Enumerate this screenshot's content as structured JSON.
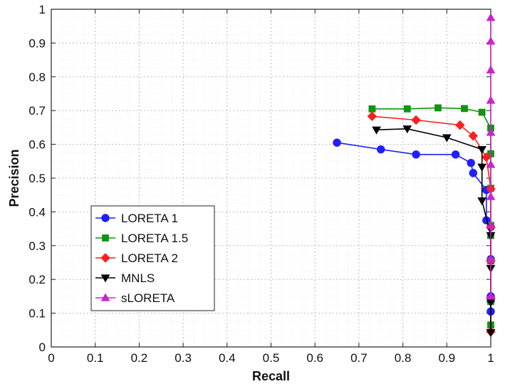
{
  "chart_data": {
    "type": "line",
    "xlabel": "Recall",
    "ylabel": "Precision",
    "xlim": [
      0,
      1
    ],
    "ylim": [
      0,
      1
    ],
    "xticks": [
      "0",
      "0.1",
      "0.2",
      "0.3",
      "0.4",
      "0.5",
      "0.6",
      "0.7",
      "0.8",
      "0.9",
      "1"
    ],
    "yticks": [
      "0",
      "0.1",
      "0.2",
      "0.3",
      "0.4",
      "0.5",
      "0.6",
      "0.7",
      "0.8",
      "0.9",
      "1"
    ],
    "grid": true,
    "legend_position": "lower-left",
    "series": [
      {
        "name": "LORETA 1",
        "color": "#1f1fff",
        "marker": "circle",
        "x": [
          0.65,
          0.75,
          0.83,
          0.92,
          0.955,
          0.96,
          0.99,
          0.99,
          1.0,
          1.0,
          1.0,
          1.0,
          1.0
        ],
        "y": [
          0.605,
          0.585,
          0.57,
          0.57,
          0.545,
          0.515,
          0.465,
          0.375,
          0.355,
          0.26,
          0.15,
          0.135,
          0.105
        ]
      },
      {
        "name": "LORETA 1.5",
        "color": "#129312",
        "marker": "square",
        "x": [
          0.73,
          0.81,
          0.88,
          0.94,
          0.98,
          1.0,
          1.0,
          1.0,
          1.0,
          1.0,
          1.0,
          1.0,
          1.0
        ],
        "y": [
          0.705,
          0.705,
          0.708,
          0.706,
          0.695,
          0.648,
          0.572,
          0.47,
          0.36,
          0.33,
          0.255,
          0.135,
          0.065
        ]
      },
      {
        "name": "LORETA 2",
        "color": "#ff1f1f",
        "marker": "diamond",
        "x": [
          0.73,
          0.83,
          0.93,
          0.96,
          0.99,
          1.0,
          1.0,
          1.0,
          1.0,
          1.0
        ],
        "y": [
          0.683,
          0.672,
          0.657,
          0.625,
          0.562,
          0.468,
          0.355,
          0.255,
          0.145,
          0.045
        ]
      },
      {
        "name": "MNLS",
        "color": "#000000",
        "marker": "triangle-down",
        "x": [
          0.74,
          0.81,
          0.9,
          0.98,
          0.98,
          0.98,
          1.0,
          1.0,
          1.0,
          1.0,
          1.0
        ],
        "y": [
          0.643,
          0.646,
          0.62,
          0.585,
          0.533,
          0.433,
          0.33,
          0.233,
          0.133,
          0.043,
          0.043
        ]
      },
      {
        "name": "sLORETA",
        "color": "#cc22cc",
        "marker": "triangle-up",
        "x": [
          1.0,
          1.0,
          1.0,
          1.0,
          1.0,
          1.0,
          1.0,
          1.0,
          1.0,
          1.0
        ],
        "y": [
          0.975,
          0.905,
          0.82,
          0.73,
          0.635,
          0.54,
          0.445,
          0.36,
          0.26,
          0.15
        ]
      }
    ]
  }
}
